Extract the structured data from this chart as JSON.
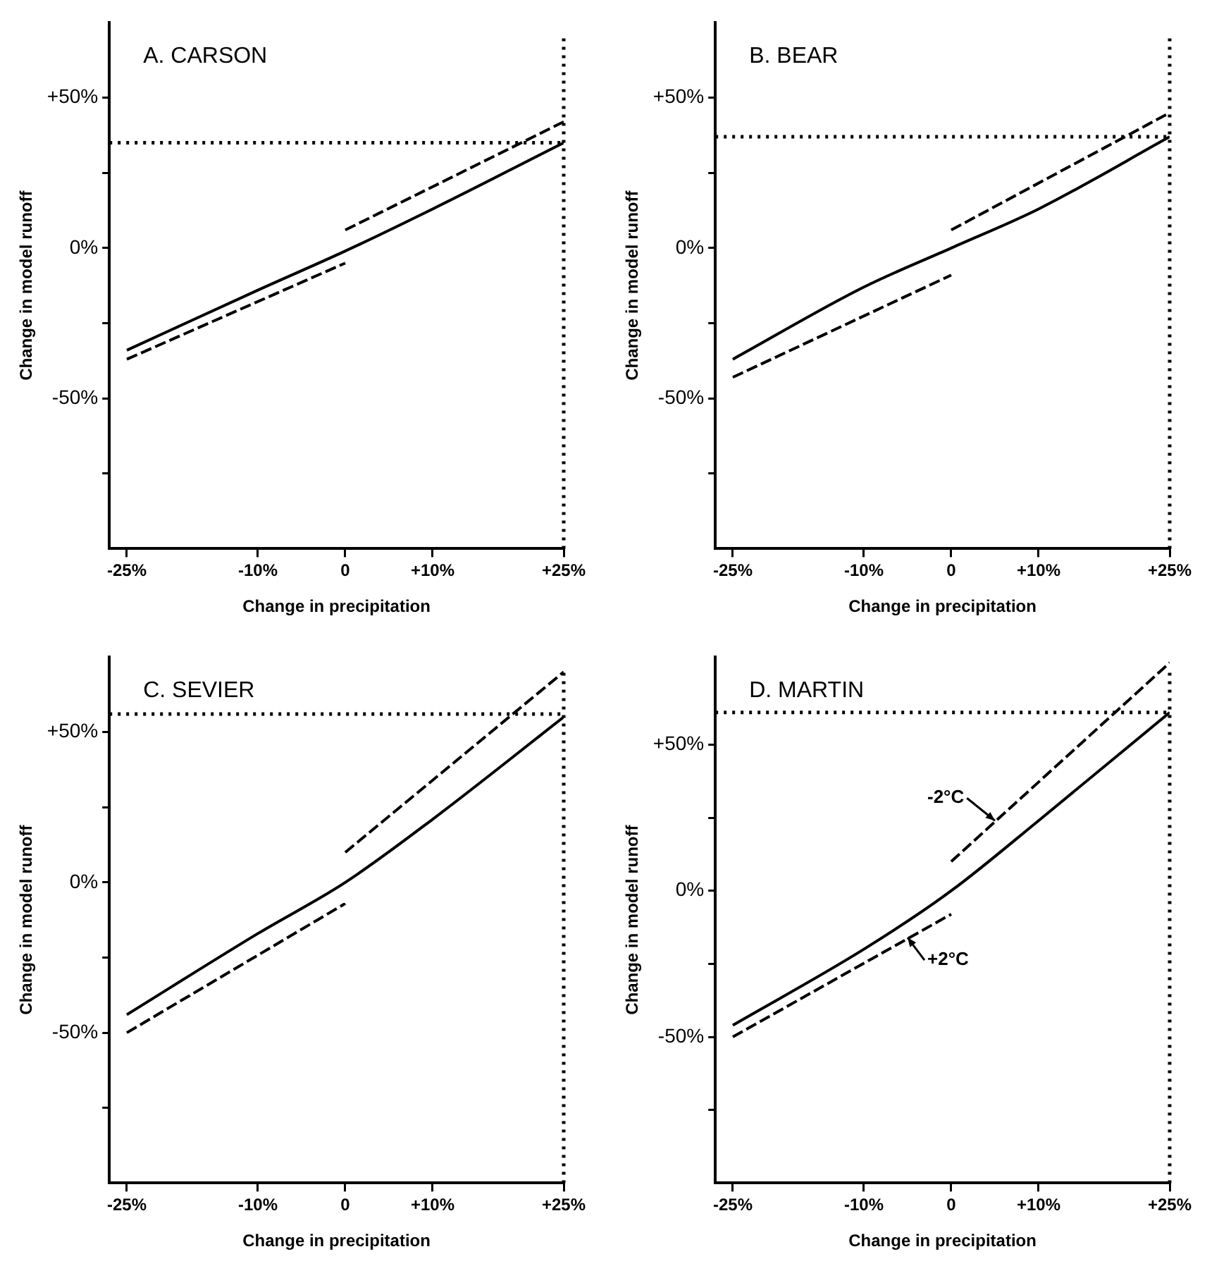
{
  "chart_data": [
    {
      "type": "line",
      "title": "A. CARSON",
      "xlabel": "Change in precipitation",
      "ylabel": "Change in model runoff",
      "xlim": [
        -27,
        25
      ],
      "ylim": [
        -100,
        75
      ],
      "marker": "none",
      "grid": false,
      "legend": false,
      "xticks": [
        {
          "value": -25,
          "label": "-25%"
        },
        {
          "value": -10,
          "label": "-10%"
        },
        {
          "value": 0,
          "label": "0"
        },
        {
          "value": 10,
          "label": "+10%"
        },
        {
          "value": 25,
          "label": "+25%"
        }
      ],
      "yticks": [
        {
          "value": -75,
          "label": null
        },
        {
          "value": -50,
          "label": "-50%"
        },
        {
          "value": -25,
          "label": null
        },
        {
          "value": 0,
          "label": "0%"
        },
        {
          "value": 25,
          "label": null
        },
        {
          "value": 50,
          "label": "+50%"
        }
      ],
      "series": [
        {
          "color": "#000000",
          "line_style": "solid",
          "x": [
            -25,
            -10,
            0,
            10,
            25
          ],
          "values": [
            -34,
            -14,
            -1,
            13,
            35
          ]
        },
        {
          "color": "#000000",
          "line_style": "dashed",
          "x": [
            -25,
            0
          ],
          "values": [
            -37,
            -5
          ]
        },
        {
          "color": "#000000",
          "line_style": "dashed",
          "x": [
            0,
            25
          ],
          "values": [
            6,
            42
          ]
        }
      ],
      "ref_lines": [
        {
          "axis": "y",
          "value": 35,
          "line_style": "dotted",
          "color": "#000000"
        },
        {
          "axis": "x",
          "value": 25,
          "line_style": "dotted",
          "color": "#000000"
        }
      ]
    },
    {
      "type": "line",
      "title": "B. BEAR",
      "xlabel": "Change in precipitation",
      "ylabel": "Change in model runoff",
      "xlim": [
        -27,
        25
      ],
      "ylim": [
        -100,
        75
      ],
      "marker": "none",
      "grid": false,
      "legend": false,
      "xticks": [
        {
          "value": -25,
          "label": "-25%"
        },
        {
          "value": -10,
          "label": "-10%"
        },
        {
          "value": 0,
          "label": "0"
        },
        {
          "value": 10,
          "label": "+10%"
        },
        {
          "value": 25,
          "label": "+25%"
        }
      ],
      "yticks": [
        {
          "value": -75,
          "label": null
        },
        {
          "value": -50,
          "label": "-50%"
        },
        {
          "value": -25,
          "label": null
        },
        {
          "value": 0,
          "label": "0%"
        },
        {
          "value": 25,
          "label": null
        },
        {
          "value": 50,
          "label": "+50%"
        }
      ],
      "series": [
        {
          "color": "#000000",
          "line_style": "solid",
          "x": [
            -25,
            -10,
            0,
            10,
            25
          ],
          "values": [
            -37,
            -13,
            0,
            13,
            37
          ]
        },
        {
          "color": "#000000",
          "line_style": "dashed",
          "x": [
            -25,
            0
          ],
          "values": [
            -43,
            -9
          ]
        },
        {
          "color": "#000000",
          "line_style": "dashed",
          "x": [
            0,
            25
          ],
          "values": [
            6,
            45
          ]
        }
      ],
      "ref_lines": [
        {
          "axis": "y",
          "value": 37,
          "line_style": "dotted",
          "color": "#000000"
        },
        {
          "axis": "x",
          "value": 25,
          "line_style": "dotted",
          "color": "#000000"
        }
      ]
    },
    {
      "type": "line",
      "title": "C. SEVIER",
      "xlabel": "Change in precipitation",
      "ylabel": "Change in model runoff",
      "xlim": [
        -27,
        25
      ],
      "ylim": [
        -100,
        75
      ],
      "marker": "none",
      "grid": false,
      "legend": false,
      "xticks": [
        {
          "value": -25,
          "label": "-25%"
        },
        {
          "value": -10,
          "label": "-10%"
        },
        {
          "value": 0,
          "label": "0"
        },
        {
          "value": 10,
          "label": "+10%"
        },
        {
          "value": 25,
          "label": "+25%"
        }
      ],
      "yticks": [
        {
          "value": -75,
          "label": null
        },
        {
          "value": -50,
          "label": "-50%"
        },
        {
          "value": -25,
          "label": null
        },
        {
          "value": 0,
          "label": "0%"
        },
        {
          "value": 25,
          "label": null
        },
        {
          "value": 50,
          "label": "+50%"
        }
      ],
      "series": [
        {
          "color": "#000000",
          "line_style": "solid",
          "x": [
            -25,
            -10,
            0,
            10,
            25
          ],
          "values": [
            -44,
            -17,
            0,
            21,
            55
          ]
        },
        {
          "color": "#000000",
          "line_style": "dashed",
          "x": [
            -25,
            0
          ],
          "values": [
            -50,
            -7
          ]
        },
        {
          "color": "#000000",
          "line_style": "dashed",
          "x": [
            0,
            25
          ],
          "values": [
            10,
            70
          ]
        }
      ],
      "ref_lines": [
        {
          "axis": "y",
          "value": 56,
          "line_style": "dotted",
          "color": "#000000"
        },
        {
          "axis": "x",
          "value": 25,
          "line_style": "dotted",
          "color": "#000000"
        }
      ]
    },
    {
      "type": "line",
      "title": "D. MARTIN",
      "xlabel": "Change in precipitation",
      "ylabel": "Change in model runoff",
      "xlim": [
        -27,
        25
      ],
      "ylim": [
        -100,
        80
      ],
      "marker": "none",
      "grid": false,
      "legend": false,
      "xticks": [
        {
          "value": -25,
          "label": "-25%"
        },
        {
          "value": -10,
          "label": "-10%"
        },
        {
          "value": 0,
          "label": "0"
        },
        {
          "value": 10,
          "label": "+10%"
        },
        {
          "value": 25,
          "label": "+25%"
        }
      ],
      "yticks": [
        {
          "value": -75,
          "label": null
        },
        {
          "value": -50,
          "label": "-50%"
        },
        {
          "value": -25,
          "label": null
        },
        {
          "value": 0,
          "label": "0%"
        },
        {
          "value": 25,
          "label": null
        },
        {
          "value": 50,
          "label": "+50%"
        }
      ],
      "series": [
        {
          "color": "#000000",
          "line_style": "solid",
          "x": [
            -25,
            -10,
            0,
            10,
            25
          ],
          "values": [
            -46,
            -20,
            0,
            24,
            61
          ]
        },
        {
          "color": "#000000",
          "line_style": "dashed",
          "x": [
            -25,
            0
          ],
          "values": [
            -50,
            -8
          ]
        },
        {
          "color": "#000000",
          "line_style": "dashed",
          "x": [
            0,
            25
          ],
          "values": [
            10,
            78
          ]
        }
      ],
      "ref_lines": [
        {
          "axis": "y",
          "value": 61,
          "line_style": "dotted",
          "color": "#000000"
        },
        {
          "axis": "x",
          "value": 25,
          "line_style": "dotted",
          "color": "#000000"
        }
      ],
      "annotations": [
        {
          "text": "-2°C",
          "x": 5,
          "y": 24
        },
        {
          "text": "+2°C",
          "x": -5,
          "y": -16
        }
      ]
    }
  ]
}
